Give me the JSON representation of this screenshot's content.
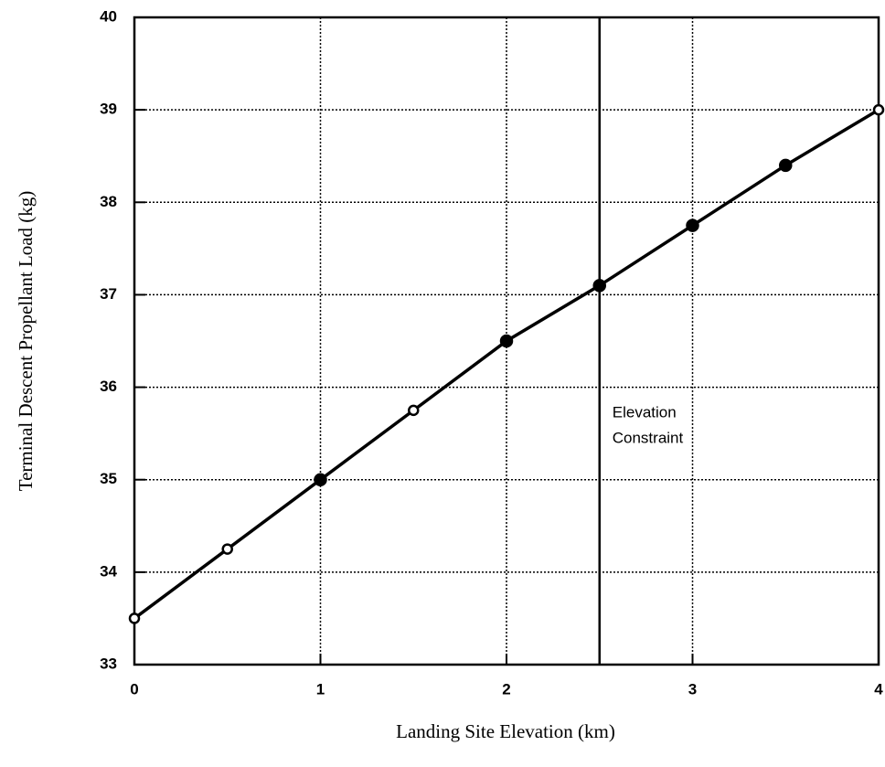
{
  "chart_data": {
    "type": "line",
    "xlabel": "Landing Site Elevation (km)",
    "ylabel": "Terminal Descent Propellant Load (kg)",
    "x": [
      0,
      0.5,
      1,
      1.5,
      2,
      2.5,
      3,
      3.5,
      4
    ],
    "series": [
      {
        "color": "#000000",
        "values": [
          33.5,
          34.25,
          35.0,
          35.75,
          36.5,
          37.1,
          37.75,
          38.4,
          39.0
        ],
        "marker_filled": [
          false,
          false,
          true,
          false,
          true,
          true,
          true,
          true,
          false
        ]
      }
    ],
    "xlim": [
      0,
      4
    ],
    "xticks": [
      0,
      1,
      2,
      3,
      4
    ],
    "ylim": [
      33,
      40
    ],
    "yticks": [
      33,
      34,
      35,
      36,
      37,
      38,
      39,
      40
    ],
    "grid": true,
    "constraint": {
      "x": 2.5,
      "label": [
        "Elevation",
        "Constraint"
      ]
    }
  }
}
